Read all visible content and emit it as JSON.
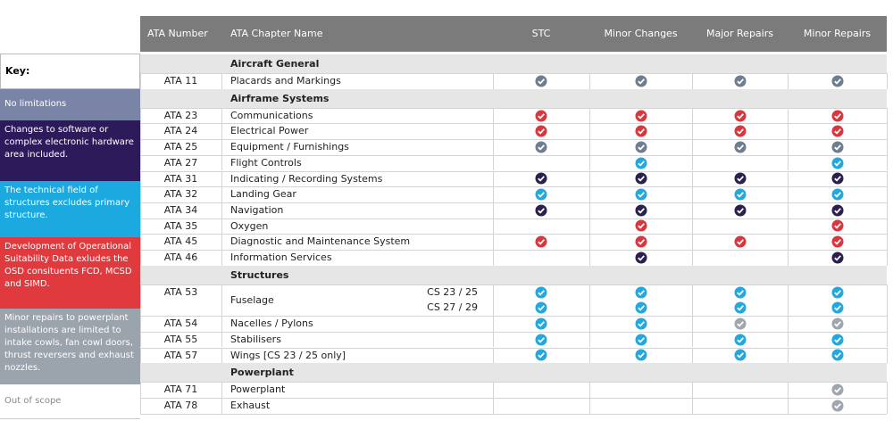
{
  "key": {
    "title": "Key:",
    "items": [
      {
        "text": "No limitations",
        "color": "#7a84a6",
        "text_color": "#ffffff"
      },
      {
        "text": "Changes to software or complex electronic hardware area included.",
        "color": "#2c1a5a",
        "text_color": "#ffffff"
      },
      {
        "text": "The technical field of structures excludes primary structure.",
        "color": "#1ba9df",
        "text_color": "#ffffff"
      },
      {
        "text": "Development of Operational Suitability Data exludes the OSD consituents FCD, MCSD and SIMD.",
        "color": "#e0393e",
        "text_color": "#ffffff"
      },
      {
        "text": "Minor repairs to powerplant installations are limited to intake cowls, fan cowl doors, thrust reversers and exhaust nozzles.",
        "color": "#9ba3ad",
        "text_color": "#ffffff"
      },
      {
        "text": "Out of scope",
        "color": "#ffffff",
        "text_color": "#888888"
      }
    ]
  },
  "table": {
    "headers": [
      "ATA Number",
      "ATA Chapter Name",
      "STC",
      "Minor Changes",
      "Major Repairs",
      "Minor Repairs"
    ],
    "sections": [
      {
        "title": "Aircraft General",
        "rows": [
          {
            "number": "ATA 11",
            "name": "Placards and Markings",
            "lines": [
              {
                "marks": [
                  "#6e7d8f",
                  "#6e7d8f",
                  "#6e7d8f",
                  "#6e7d8f"
                ]
              }
            ]
          }
        ]
      },
      {
        "title": "Airframe Systems",
        "rows": [
          {
            "number": "ATA 23",
            "name": "Communications",
            "lines": [
              {
                "marks": [
                  "#d9363e",
                  "#d9363e",
                  "#d9363e",
                  "#d9363e"
                ]
              }
            ]
          },
          {
            "number": "ATA 24",
            "name": "Electrical Power",
            "lines": [
              {
                "marks": [
                  "#d9363e",
                  "#d9363e",
                  "#d9363e",
                  "#d9363e"
                ]
              }
            ]
          },
          {
            "number": "ATA 25",
            "name": "Equipment / Furnishings",
            "lines": [
              {
                "marks": [
                  "#6e7d8f",
                  "#6e7d8f",
                  "#6e7d8f",
                  "#6e7d8f"
                ]
              }
            ]
          },
          {
            "number": "ATA 27",
            "name": "Flight Controls",
            "lines": [
              {
                "marks": [
                  null,
                  "#22a8dc",
                  null,
                  "#22a8dc"
                ]
              }
            ]
          },
          {
            "number": "ATA 31",
            "name": "Indicating / Recording Systems",
            "lines": [
              {
                "marks": [
                  "#2a1f4e",
                  "#2a1f4e",
                  "#2a1f4e",
                  "#2a1f4e"
                ]
              }
            ]
          },
          {
            "number": "ATA 32",
            "name": "Landing Gear",
            "lines": [
              {
                "marks": [
                  "#22a8dc",
                  "#22a8dc",
                  "#22a8dc",
                  "#22a8dc"
                ]
              }
            ]
          },
          {
            "number": "ATA 34",
            "name": "Navigation",
            "lines": [
              {
                "marks": [
                  "#2a1f4e",
                  "#2a1f4e",
                  "#2a1f4e",
                  "#2a1f4e"
                ]
              }
            ]
          },
          {
            "number": "ATA 35",
            "name": "Oxygen",
            "lines": [
              {
                "marks": [
                  null,
                  "#d9363e",
                  null,
                  "#d9363e"
                ]
              }
            ]
          },
          {
            "number": "ATA 45",
            "name": "Diagnostic and Maintenance System",
            "lines": [
              {
                "marks": [
                  "#d9363e",
                  "#d9363e",
                  "#d9363e",
                  "#d9363e"
                ]
              }
            ]
          },
          {
            "number": "ATA 46",
            "name": "Information Services",
            "lines": [
              {
                "marks": [
                  null,
                  "#2a1f4e",
                  null,
                  "#2a1f4e"
                ]
              }
            ]
          }
        ]
      },
      {
        "title": "Structures",
        "rows": [
          {
            "number": "ATA 53",
            "name": "Fuselage",
            "lines": [
              {
                "cs": "CS 23 / 25",
                "marks": [
                  "#22a8dc",
                  "#22a8dc",
                  "#22a8dc",
                  "#22a8dc"
                ]
              },
              {
                "cs": "CS 27 / 29",
                "marks": [
                  "#22a8dc",
                  "#22a8dc",
                  "#22a8dc",
                  "#22a8dc"
                ]
              }
            ]
          },
          {
            "number": "ATA 54",
            "name": "Nacelles / Pylons",
            "lines": [
              {
                "marks": [
                  "#22a8dc",
                  "#22a8dc",
                  "#a0a6ad",
                  "#a0a6ad"
                ]
              }
            ]
          },
          {
            "number": "ATA 55",
            "name": "Stabilisers",
            "lines": [
              {
                "marks": [
                  "#22a8dc",
                  "#22a8dc",
                  "#22a8dc",
                  "#22a8dc"
                ]
              }
            ]
          },
          {
            "number": "ATA 57",
            "name": "Wings [CS 23 / 25 only]",
            "lines": [
              {
                "marks": [
                  "#22a8dc",
                  "#22a8dc",
                  "#22a8dc",
                  "#22a8dc"
                ]
              }
            ]
          }
        ]
      },
      {
        "title": "Powerplant",
        "rows": [
          {
            "number": "ATA 71",
            "name": "Powerplant",
            "lines": [
              {
                "marks": [
                  null,
                  null,
                  null,
                  "#a0a6ad"
                ]
              }
            ]
          },
          {
            "number": "ATA 78",
            "name": "Exhaust",
            "lines": [
              {
                "marks": [
                  null,
                  null,
                  null,
                  "#a0a6ad"
                ]
              }
            ]
          }
        ]
      }
    ]
  }
}
